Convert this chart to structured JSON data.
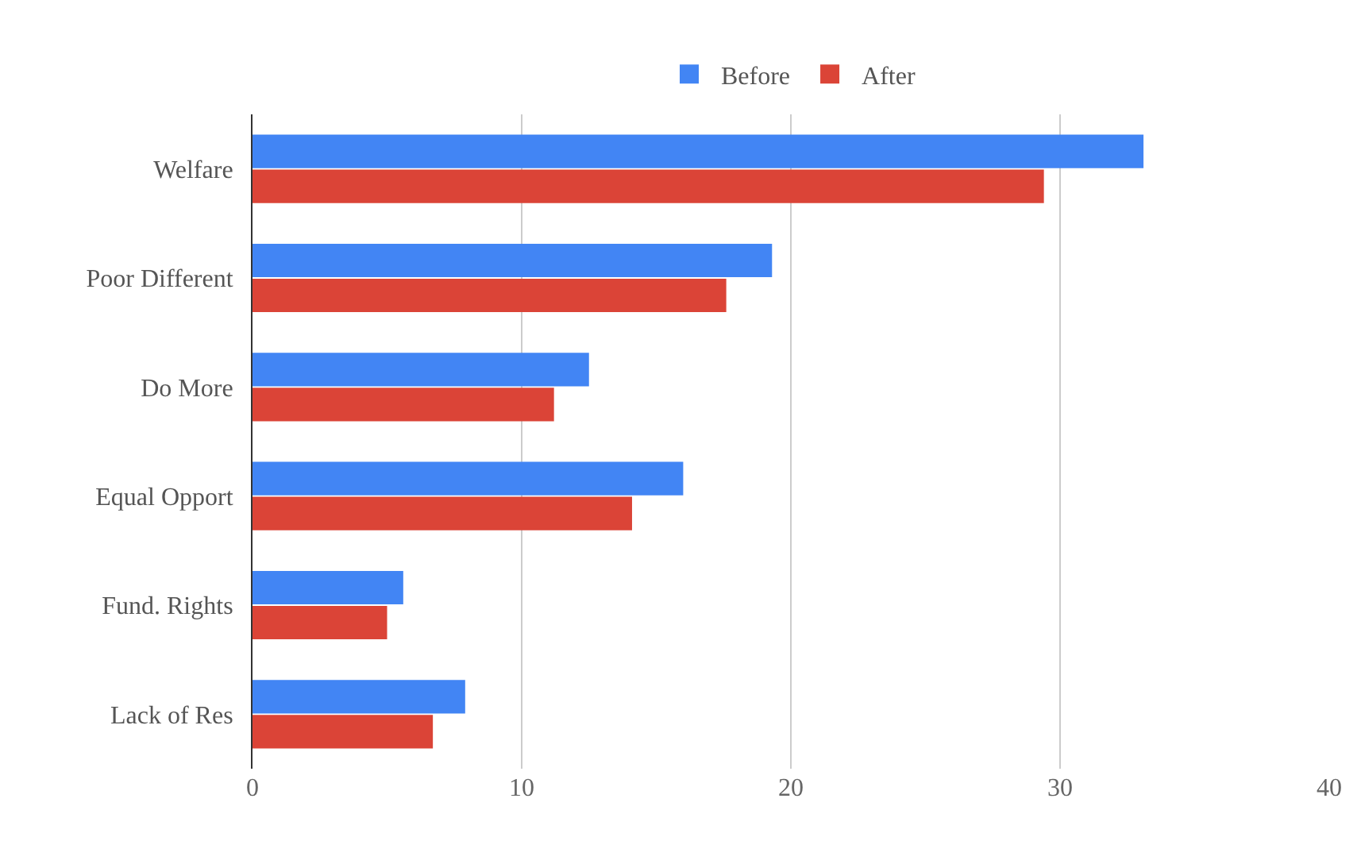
{
  "chart_data": {
    "type": "bar",
    "orientation": "horizontal",
    "categories": [
      "Welfare",
      "Poor Different",
      "Do More",
      "Equal Opport",
      "Fund. Rights",
      "Lack of Res"
    ],
    "series": [
      {
        "name": "Before",
        "color": "#4285f4",
        "values": [
          33.1,
          19.3,
          12.5,
          16.0,
          5.6,
          7.9
        ]
      },
      {
        "name": "After",
        "color": "#db4437",
        "values": [
          29.4,
          17.6,
          11.2,
          14.1,
          5.0,
          6.7
        ]
      }
    ],
    "xlim": [
      0,
      40
    ],
    "xticks": [
      0,
      10,
      20,
      30,
      40
    ],
    "grid": "x",
    "legend": "top"
  }
}
